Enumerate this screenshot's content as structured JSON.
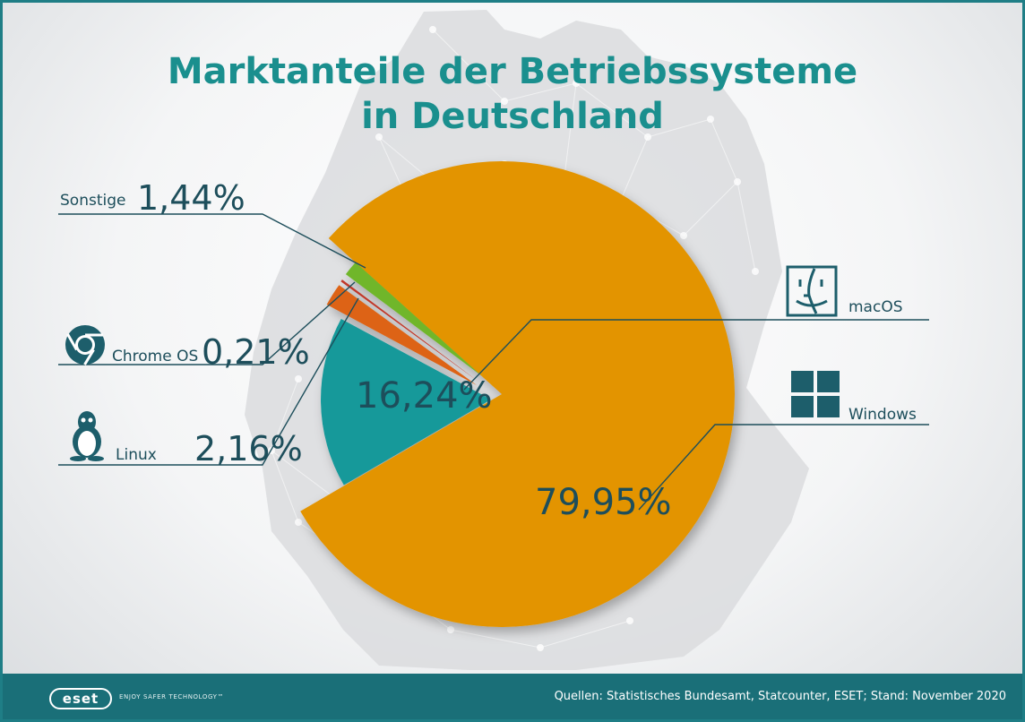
{
  "title_line1": "Marktanteile der Betriebssysteme",
  "title_line2": "in Deutschland",
  "chart_data": {
    "type": "pie",
    "title": "Marktanteile der Betriebssysteme in Deutschland",
    "slices": [
      {
        "label": "Windows",
        "value": 79.95,
        "display": "79,95%",
        "color": "#e39406"
      },
      {
        "label": "macOS",
        "value": 16.24,
        "display": "16,24%",
        "color": "#12999a"
      },
      {
        "label": "Linux",
        "value": 2.16,
        "display": "2,16%",
        "color": "#dd6313"
      },
      {
        "label": "Chrome OS",
        "value": 0.21,
        "display": "0,21%",
        "color": "#c0392b"
      },
      {
        "label": "Sonstige",
        "value": 1.44,
        "display": "1,44%",
        "color": "#6fb62b"
      }
    ]
  },
  "labels": {
    "sonstige": {
      "name": "Sonstige",
      "pct": "1,44%"
    },
    "chrome": {
      "name": "Chrome OS",
      "pct": "0,21%"
    },
    "linux": {
      "name": "Linux",
      "pct": "2,16%"
    },
    "macos": {
      "name": "macOS",
      "pct": "16,24%"
    },
    "windows": {
      "name": "Windows",
      "pct": "79,95%"
    }
  },
  "icons": {
    "chrome": "chrome-icon",
    "linux": "linux-tux-icon",
    "macos": "mac-finder-icon",
    "windows": "windows-icon"
  },
  "footer": {
    "logo": "eset",
    "tagline": "ENJOY SAFER TECHNOLOGY™",
    "source": "Quellen: Statistisches Bundesamt, Statcounter, ESET; Stand: November 2020"
  },
  "colors": {
    "accent": "#1a8f8e",
    "footer": "#1a6f78",
    "text": "#1d4e5b"
  }
}
